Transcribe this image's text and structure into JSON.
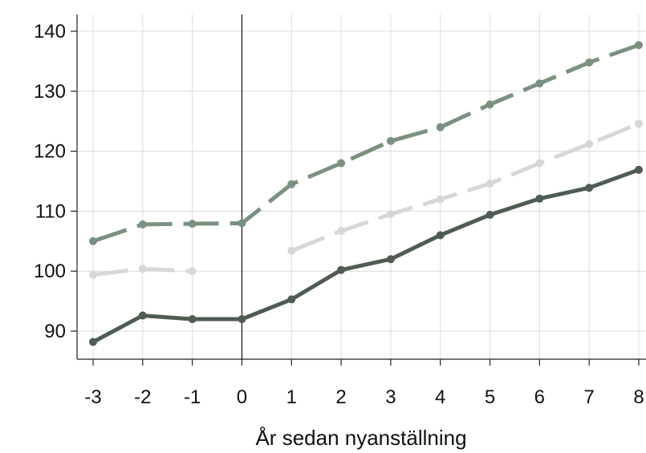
{
  "chart_data": {
    "type": "line",
    "title": "",
    "xlabel": "År sedan nyanställning",
    "ylabel": "",
    "x": [
      -3,
      -2,
      -1,
      0,
      1,
      2,
      3,
      4,
      5,
      6,
      7,
      8
    ],
    "xticks": [
      "-3",
      "-2",
      "-1",
      "0",
      "1",
      "2",
      "3",
      "4",
      "5",
      "6",
      "7",
      "8"
    ],
    "yticks": [
      90,
      100,
      110,
      120,
      130,
      140
    ],
    "xlim": [
      -3.3,
      8.1
    ],
    "ylim": [
      85.5,
      143
    ],
    "grid": true,
    "reference_line_x": 0,
    "series": [
      {
        "color": "#7a917f",
        "style": "dashed",
        "values": [
          105,
          107.8,
          107.9,
          108,
          114.5,
          118,
          121.7,
          124,
          127.8,
          131.3,
          134.8,
          137.7
        ]
      },
      {
        "color": "#d6d8d5",
        "style": "dashed",
        "values": [
          99.4,
          100.4,
          100,
          null,
          103.4,
          106.7,
          109.5,
          112,
          114.6,
          118,
          121.2,
          124.6
        ]
      },
      {
        "color": "#4f5c52",
        "style": "solid",
        "values": [
          88.2,
          92.6,
          92,
          92,
          95.3,
          100.2,
          102,
          106,
          109.4,
          112.1,
          113.9,
          116.9
        ]
      }
    ]
  }
}
